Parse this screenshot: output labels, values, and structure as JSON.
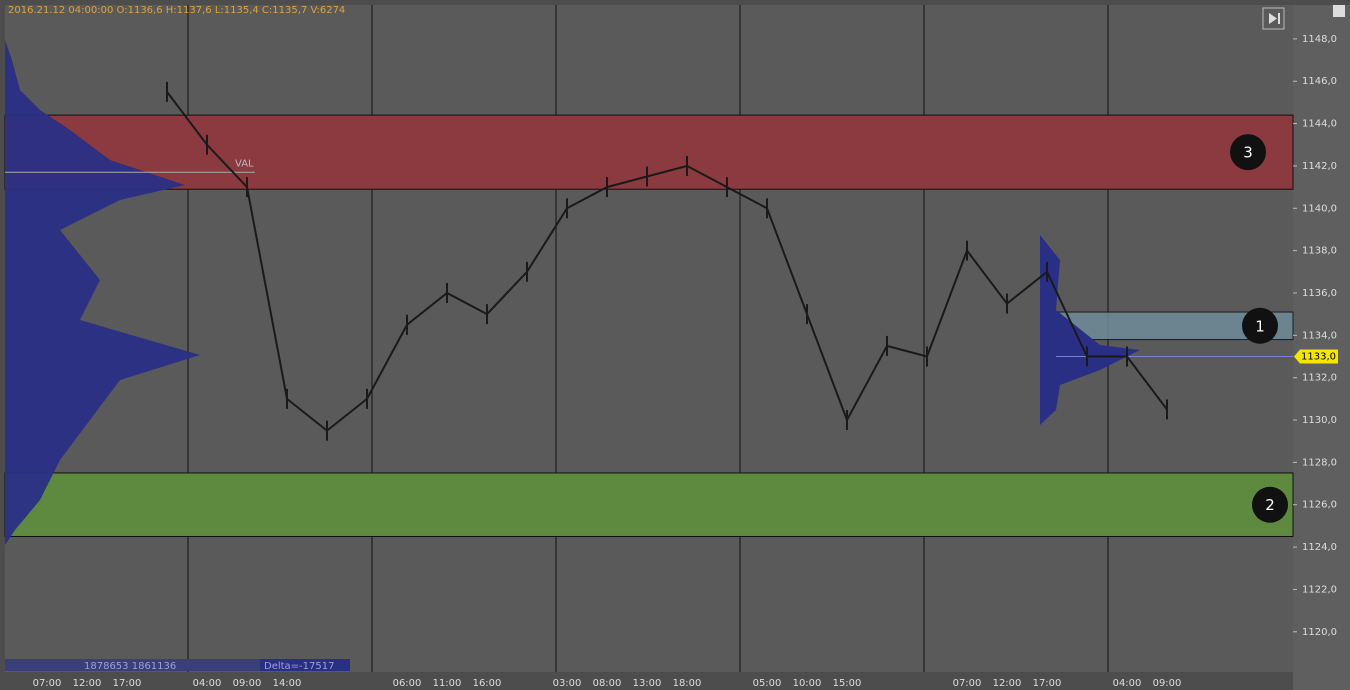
{
  "chart_data": {
    "type": "line",
    "header": "2016.21.12 04:00:00   O:1136,6   H:1137,6   L:1135,4   C:1135,7   V:6274",
    "categories": [
      "07:00",
      "12:00",
      "17:00",
      null,
      "04:00",
      "09:00",
      "14:00",
      null,
      null,
      "06:00",
      "11:00",
      "16:00",
      null,
      "03:00",
      "08:00",
      "13:00",
      "18:00",
      null,
      "05:00",
      "10:00",
      "15:00",
      null,
      null,
      "07:00",
      "12:00",
      "17:00",
      null,
      "04:00",
      "09:00"
    ],
    "series": [
      {
        "color": "#1a1a1a",
        "values": [
          null,
          null,
          null,
          1145.5,
          1143,
          1141,
          1131,
          1129.5,
          1131,
          1134.5,
          1136,
          1135,
          1137,
          1140,
          1141,
          1141.5,
          1142,
          1141,
          1140,
          1135,
          1130,
          1133.5,
          1133,
          1138,
          1135.5,
          1137,
          1133,
          1133,
          1130.5
        ]
      }
    ],
    "ylim": [
      1118.1,
      1149.6
    ],
    "yticks": [
      {
        "value": 1120,
        "label": "1120,0"
      },
      {
        "value": 1122,
        "label": "1122,0"
      },
      {
        "value": 1124,
        "label": "1124,0"
      },
      {
        "value": 1126,
        "label": "1126,0"
      },
      {
        "value": 1128,
        "label": "1128,0"
      },
      {
        "value": 1130,
        "label": "1130,0"
      },
      {
        "value": 1132,
        "label": "1132,0"
      },
      {
        "value": 1134,
        "label": "1134,0"
      },
      {
        "value": 1136,
        "label": "1136,0"
      },
      {
        "value": 1138,
        "label": "1138,0"
      },
      {
        "value": 1140,
        "label": "1140,0"
      },
      {
        "value": 1142,
        "label": "1142,0"
      },
      {
        "value": 1144,
        "label": "1144,0"
      },
      {
        "value": 1146,
        "label": "1146,0"
      },
      {
        "value": 1148,
        "label": "1148,0"
      }
    ],
    "zones": [
      {
        "label": "3",
        "from": 1140.9,
        "to": 1144.4,
        "color": "#8b3a3f"
      },
      {
        "label": "2",
        "from": 1124.5,
        "to": 1127.5,
        "color": "#5e8a3f"
      },
      {
        "label": "1",
        "from": 1133.8,
        "to": 1135.1,
        "color": "#6f8c9a"
      }
    ],
    "val_line": {
      "label": "VAL",
      "value": 1141.7
    },
    "current_price": {
      "value": 1133,
      "label": "1133,0"
    },
    "volume_text": "1878653 1861136",
    "delta_text": "Delta=-17517"
  }
}
